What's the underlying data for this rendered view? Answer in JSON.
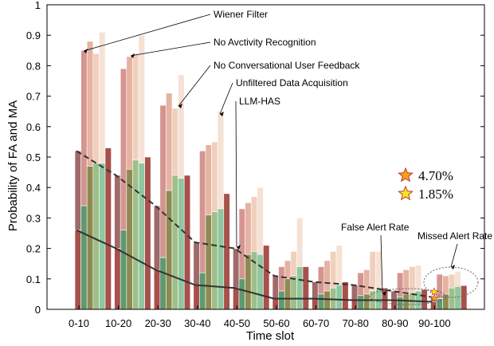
{
  "chart_data": {
    "type": "bar",
    "title": "",
    "xlabel": "Time slot",
    "ylabel": "Probability of FA and MA",
    "ylim": [
      0,
      1
    ],
    "yticks": [
      "0",
      "0.1",
      "0.2",
      "0.3",
      "0.4",
      "0.5",
      "0.6",
      "0.7",
      "0.8",
      "0.9",
      "1"
    ],
    "grid": false,
    "categories": [
      "0-10",
      "10-20",
      "20-30",
      "30-40",
      "40-50",
      "50-60",
      "60-70",
      "70-80",
      "80-90",
      "90-100"
    ],
    "stack_segments": [
      "False Alert Rate",
      "Missed Alert Rate"
    ],
    "series": [
      {
        "name": "LLM-HAS",
        "false_alert": [
          0.26,
          0.2,
          0.13,
          0.08,
          0.07,
          0.035,
          0.035,
          0.03,
          0.03,
          0.025
        ],
        "total": [
          0.52,
          0.44,
          0.34,
          0.22,
          0.2,
          0.11,
          0.09,
          0.08,
          0.06,
          0.04
        ]
      },
      {
        "name": "Unfiltered Data Acquisition",
        "false_alert": [
          0.34,
          0.26,
          0.17,
          0.12,
          0.1,
          0.06,
          0.05,
          0.045,
          0.04,
          0.035
        ],
        "total": [
          0.85,
          0.79,
          0.67,
          0.52,
          0.33,
          0.14,
          0.14,
          0.12,
          0.12,
          0.115
        ]
      },
      {
        "name": "No Conversational User Feedback",
        "false_alert": [
          0.47,
          0.46,
          0.39,
          0.31,
          0.18,
          0.1,
          0.06,
          0.05,
          0.05,
          0.05
        ],
        "total": [
          0.88,
          0.83,
          0.71,
          0.54,
          0.35,
          0.16,
          0.16,
          0.13,
          0.13,
          0.11
        ]
      },
      {
        "name": "No Avctivity Recognition",
        "false_alert": [
          0.48,
          0.49,
          0.44,
          0.32,
          0.19,
          0.11,
          0.07,
          0.06,
          0.055,
          0.07
        ],
        "total": [
          0.84,
          0.84,
          0.66,
          0.55,
          0.37,
          0.19,
          0.19,
          0.19,
          0.14,
          0.115
        ]
      },
      {
        "name": "Wiener Filter",
        "false_alert": [
          0.48,
          0.48,
          0.43,
          0.33,
          0.18,
          0.14,
          0.08,
          0.065,
          0.06,
          0.075
        ],
        "total": [
          0.91,
          0.9,
          0.77,
          0.65,
          0.4,
          0.3,
          0.21,
          0.19,
          0.145,
          0.125
        ]
      },
      {
        "name": "Wiener Filter",
        "false_alert": [
          0.53,
          0.5,
          0.44,
          0.38,
          0.21,
          0.14,
          0.09,
          0.07,
          0.065,
          0.078
        ],
        "total": [
          0.53,
          0.5,
          0.44,
          0.38,
          0.21,
          0.14,
          0.09,
          0.07,
          0.065,
          0.078
        ]
      }
    ],
    "lines": [
      {
        "name": "Missed Alert Rate (LLM-HAS, dashed)",
        "style": "dashed",
        "values": [
          0.52,
          0.44,
          0.34,
          0.22,
          0.2,
          0.11,
          0.09,
          0.08,
          0.06,
          0.04
        ]
      },
      {
        "name": "False Alert Rate (LLM-HAS, solid)",
        "style": "solid",
        "values": [
          0.26,
          0.2,
          0.13,
          0.08,
          0.07,
          0.035,
          0.035,
          0.03,
          0.03,
          0.025
        ]
      }
    ],
    "annotations": [
      {
        "text": "Wiener Filter",
        "target_category": "0-10"
      },
      {
        "text": "No Avctivity Recognition",
        "target_category": "10-20"
      },
      {
        "text": "No Conversational User Feedback",
        "target_category": "20-30"
      },
      {
        "text": "Unfiltered Data Acquisition",
        "target_category": "30-40"
      },
      {
        "text": "LLM-HAS",
        "target_category": "40-50"
      },
      {
        "text": "False Alert Rate",
        "target_category": "80-90"
      },
      {
        "text": "Missed Alert Rate",
        "target_category": "90-100"
      }
    ],
    "stars": [
      {
        "label": "4.70%",
        "color": "#f2a21c"
      },
      {
        "label": "1.85%",
        "color": "#f5e61c"
      }
    ],
    "colors": {
      "fa": [
        "#a8504c",
        "#5f9a6e",
        "#8f8a52",
        "#9fbf8a",
        "#8fc79e"
      ],
      "ma": [
        "#a06a6a",
        "#d49590",
        "#e6b2a2",
        "#f0d0bd",
        "#f5e2d5"
      ]
    }
  }
}
